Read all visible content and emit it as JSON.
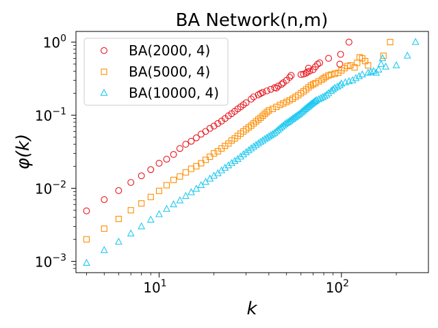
{
  "chart_data": {
    "type": "scatter",
    "title": "BA Network(n,m)",
    "xlabel": "k",
    "ylabel": "φ(k)",
    "xscale": "log",
    "yscale": "log",
    "xlim": [
      3.5,
      300
    ],
    "ylim": [
      0.0007,
      1.4
    ],
    "x_ticks": [
      {
        "value": 10,
        "base": "10",
        "exp": "1"
      },
      {
        "value": 100,
        "base": "10",
        "exp": "2"
      }
    ],
    "y_ticks": [
      {
        "value": 0.001,
        "base": "10",
        "exp": "−3"
      },
      {
        "value": 0.01,
        "base": "10",
        "exp": "−2"
      },
      {
        "value": 0.1,
        "base": "10",
        "exp": "−1"
      },
      {
        "value": 1,
        "base": "10",
        "exp": "0"
      }
    ],
    "grid": false,
    "legend_position": "top-left",
    "series": [
      {
        "name": "BA(2000, 4)",
        "marker": "circle",
        "color": "#e8141c",
        "points": [
          [
            4,
            0.0049
          ],
          [
            5,
            0.007
          ],
          [
            6,
            0.0093
          ],
          [
            7,
            0.012
          ],
          [
            8,
            0.0148
          ],
          [
            9,
            0.018
          ],
          [
            10,
            0.022
          ],
          [
            11,
            0.025
          ],
          [
            12,
            0.029
          ],
          [
            13,
            0.035
          ],
          [
            14,
            0.04
          ],
          [
            15,
            0.044
          ],
          [
            16,
            0.049
          ],
          [
            17,
            0.055
          ],
          [
            18,
            0.06
          ],
          [
            19,
            0.066
          ],
          [
            20,
            0.071
          ],
          [
            21,
            0.077
          ],
          [
            22,
            0.083
          ],
          [
            23,
            0.09
          ],
          [
            24,
            0.098
          ],
          [
            25,
            0.105
          ],
          [
            26,
            0.113
          ],
          [
            27,
            0.122
          ],
          [
            28,
            0.13
          ],
          [
            29,
            0.139
          ],
          [
            30,
            0.148
          ],
          [
            32,
            0.166
          ],
          [
            33,
            0.178
          ],
          [
            35,
            0.19
          ],
          [
            36,
            0.198
          ],
          [
            37,
            0.205
          ],
          [
            39,
            0.215
          ],
          [
            41,
            0.226
          ],
          [
            43,
            0.238
          ],
          [
            44,
            0.235
          ],
          [
            45,
            0.25
          ],
          [
            47,
            0.265
          ],
          [
            48,
            0.278
          ],
          [
            50,
            0.3
          ],
          [
            52,
            0.33
          ],
          [
            53,
            0.35
          ],
          [
            60,
            0.36
          ],
          [
            62,
            0.365
          ],
          [
            64,
            0.375
          ],
          [
            65,
            0.39
          ],
          [
            66,
            0.44
          ],
          [
            67,
            0.4
          ],
          [
            70,
            0.42
          ],
          [
            72,
            0.46
          ],
          [
            74,
            0.5
          ],
          [
            76,
            0.52
          ],
          [
            85,
            0.6
          ],
          [
            98,
            0.5
          ],
          [
            99,
            0.68
          ],
          [
            110,
            1.0
          ]
        ]
      },
      {
        "name": "BA(5000, 4)",
        "marker": "square",
        "color": "#ff8c00",
        "points": [
          [
            4,
            0.002
          ],
          [
            5,
            0.0028
          ],
          [
            6,
            0.0038
          ],
          [
            7,
            0.005
          ],
          [
            8,
            0.0062
          ],
          [
            9,
            0.0076
          ],
          [
            10,
            0.0092
          ],
          [
            11,
            0.011
          ],
          [
            12,
            0.013
          ],
          [
            13,
            0.0145
          ],
          [
            14,
            0.0165
          ],
          [
            15,
            0.0185
          ],
          [
            16,
            0.02
          ],
          [
            17,
            0.022
          ],
          [
            18,
            0.0245
          ],
          [
            19,
            0.027
          ],
          [
            20,
            0.03
          ],
          [
            21,
            0.032
          ],
          [
            22,
            0.035
          ],
          [
            23,
            0.038
          ],
          [
            24,
            0.041
          ],
          [
            25,
            0.045
          ],
          [
            26,
            0.048
          ],
          [
            27,
            0.052
          ],
          [
            28,
            0.056
          ],
          [
            29,
            0.06
          ],
          [
            30,
            0.064
          ],
          [
            31,
            0.068
          ],
          [
            32,
            0.072
          ],
          [
            33,
            0.077
          ],
          [
            34,
            0.082
          ],
          [
            35,
            0.087
          ],
          [
            36,
            0.092
          ],
          [
            37,
            0.098
          ],
          [
            38,
            0.104
          ],
          [
            39,
            0.11
          ],
          [
            40,
            0.116
          ],
          [
            42,
            0.122
          ],
          [
            44,
            0.13
          ],
          [
            46,
            0.138
          ],
          [
            48,
            0.145
          ],
          [
            50,
            0.152
          ],
          [
            52,
            0.16
          ],
          [
            54,
            0.168
          ],
          [
            56,
            0.178
          ],
          [
            58,
            0.188
          ],
          [
            60,
            0.2
          ],
          [
            62,
            0.212
          ],
          [
            64,
            0.225
          ],
          [
            66,
            0.24
          ],
          [
            68,
            0.255
          ],
          [
            70,
            0.265
          ],
          [
            72,
            0.275
          ],
          [
            75,
            0.29
          ],
          [
            78,
            0.305
          ],
          [
            80,
            0.32
          ],
          [
            82,
            0.335
          ],
          [
            85,
            0.35
          ],
          [
            88,
            0.36
          ],
          [
            92,
            0.37
          ],
          [
            96,
            0.38
          ],
          [
            100,
            0.41
          ],
          [
            104,
            0.44
          ],
          [
            108,
            0.47
          ],
          [
            112,
            0.48
          ],
          [
            118,
            0.45
          ],
          [
            122,
            0.52
          ],
          [
            126,
            0.62
          ],
          [
            130,
            0.6
          ],
          [
            135,
            0.55
          ],
          [
            140,
            0.48
          ],
          [
            170,
            0.65
          ],
          [
            185,
            1.0
          ]
        ]
      },
      {
        "name": "BA(10000, 4)",
        "marker": "triangle",
        "color": "#1ec8f0",
        "points": [
          [
            4,
            0.00095
          ],
          [
            5,
            0.00142
          ],
          [
            6,
            0.00185
          ],
          [
            7,
            0.0024
          ],
          [
            8,
            0.003
          ],
          [
            9,
            0.0037
          ],
          [
            10,
            0.0044
          ],
          [
            11,
            0.0052
          ],
          [
            12,
            0.006
          ],
          [
            13,
            0.0068
          ],
          [
            14,
            0.0078
          ],
          [
            15,
            0.0088
          ],
          [
            16,
            0.0098
          ],
          [
            17,
            0.011
          ],
          [
            18,
            0.0122
          ],
          [
            19,
            0.0135
          ],
          [
            20,
            0.0148
          ],
          [
            21,
            0.016
          ],
          [
            22,
            0.0175
          ],
          [
            23,
            0.019
          ],
          [
            24,
            0.0205
          ],
          [
            25,
            0.022
          ],
          [
            26,
            0.0235
          ],
          [
            27,
            0.025
          ],
          [
            28,
            0.027
          ],
          [
            29,
            0.029
          ],
          [
            30,
            0.031
          ],
          [
            31,
            0.033
          ],
          [
            32,
            0.035
          ],
          [
            33,
            0.037
          ],
          [
            34,
            0.039
          ],
          [
            35,
            0.041
          ],
          [
            36,
            0.043
          ],
          [
            37,
            0.045
          ],
          [
            38,
            0.047
          ],
          [
            39,
            0.049
          ],
          [
            40,
            0.051
          ],
          [
            41,
            0.053
          ],
          [
            42,
            0.055
          ],
          [
            43,
            0.057
          ],
          [
            44,
            0.06
          ],
          [
            45,
            0.063
          ],
          [
            46,
            0.066
          ],
          [
            47,
            0.069
          ],
          [
            48,
            0.072
          ],
          [
            49,
            0.075
          ],
          [
            50,
            0.078
          ],
          [
            51,
            0.08
          ],
          [
            52,
            0.083
          ],
          [
            53,
            0.086
          ],
          [
            54,
            0.089
          ],
          [
            55,
            0.092
          ],
          [
            56,
            0.095
          ],
          [
            57,
            0.098
          ],
          [
            58,
            0.101
          ],
          [
            59,
            0.104
          ],
          [
            60,
            0.108
          ],
          [
            61,
            0.112
          ],
          [
            62,
            0.116
          ],
          [
            63,
            0.12
          ],
          [
            64,
            0.124
          ],
          [
            65,
            0.128
          ],
          [
            66,
            0.132
          ],
          [
            67,
            0.136
          ],
          [
            68,
            0.14
          ],
          [
            69,
            0.144
          ],
          [
            70,
            0.148
          ],
          [
            71,
            0.152
          ],
          [
            72,
            0.156
          ],
          [
            73,
            0.16
          ],
          [
            75,
            0.165
          ],
          [
            77,
            0.17
          ],
          [
            79,
            0.176
          ],
          [
            81,
            0.182
          ],
          [
            83,
            0.19
          ],
          [
            85,
            0.2
          ],
          [
            88,
            0.215
          ],
          [
            90,
            0.225
          ],
          [
            92,
            0.235
          ],
          [
            95,
            0.245
          ],
          [
            98,
            0.255
          ],
          [
            100,
            0.27
          ],
          [
            105,
            0.28
          ],
          [
            110,
            0.29
          ],
          [
            115,
            0.3
          ],
          [
            120,
            0.32
          ],
          [
            125,
            0.34
          ],
          [
            130,
            0.36
          ],
          [
            140,
            0.38
          ],
          [
            145,
            0.39
          ],
          [
            150,
            0.4
          ],
          [
            155,
            0.38
          ],
          [
            160,
            0.42
          ],
          [
            165,
            0.5
          ],
          [
            168,
            0.6
          ],
          [
            175,
            0.46
          ],
          [
            200,
            0.48
          ],
          [
            230,
            0.65
          ],
          [
            255,
            1.0
          ]
        ]
      }
    ]
  }
}
